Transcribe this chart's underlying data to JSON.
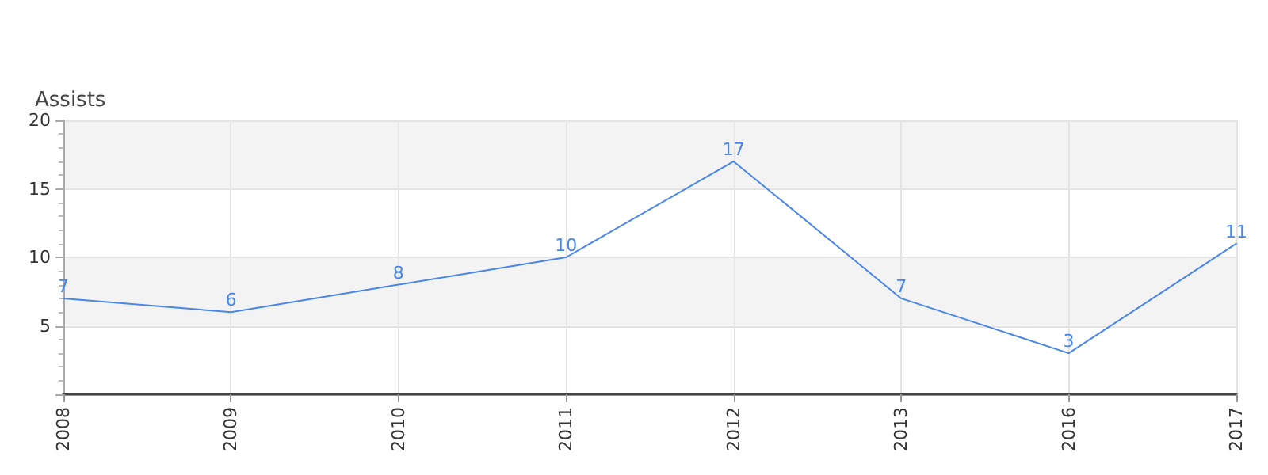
{
  "chart_data": {
    "type": "line",
    "ylabel": "Assists",
    "categories": [
      "2008",
      "2009",
      "2010",
      "2011",
      "2012",
      "2013",
      "2016",
      "2017"
    ],
    "series": [
      {
        "color": "#4a86e8",
        "values": [
          7,
          6,
          8,
          10,
          17,
          7,
          3,
          11
        ]
      }
    ],
    "ylim": [
      0,
      20
    ],
    "yticks": [
      {
        "value": 0,
        "label": null
      },
      5,
      10,
      15,
      20
    ],
    "grid": true,
    "data_labels": true,
    "marker": "none",
    "line_style": "solid"
  }
}
